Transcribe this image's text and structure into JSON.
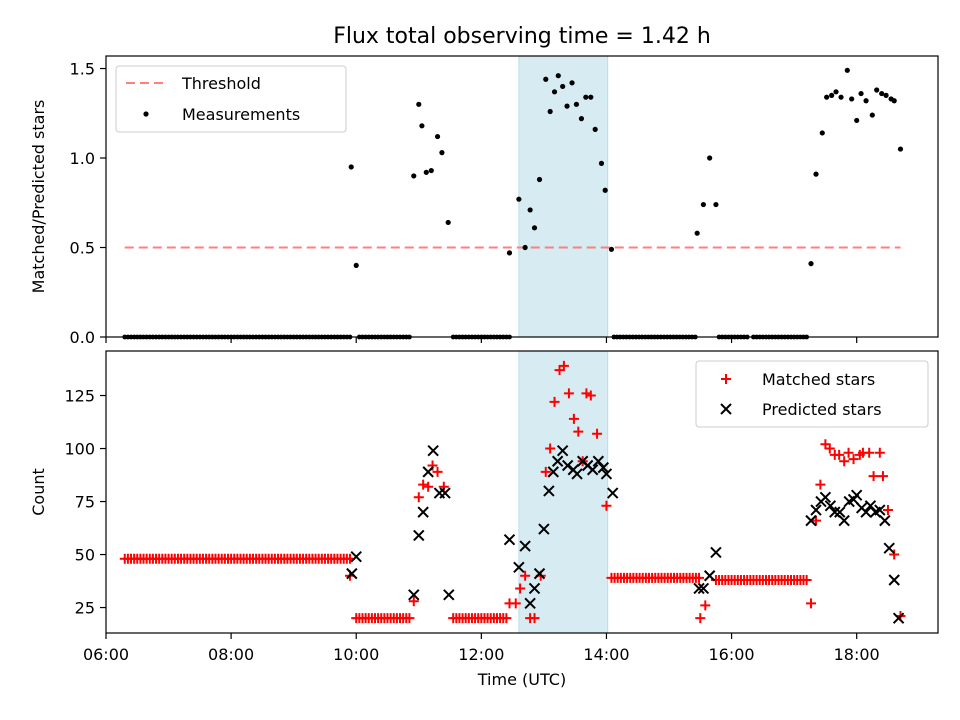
{
  "title": "Flux total observing time = 1.42 h",
  "chart_data": [
    {
      "type": "scatter",
      "panel": "top",
      "title": "Flux total observing time = 1.42 h",
      "ylabel": "Matched/Predicted stars",
      "xlabel": "",
      "xlim": [
        6.0,
        19.3
      ],
      "ylim": [
        0,
        1.57
      ],
      "yticks": [
        0.0,
        0.5,
        1.0,
        1.5
      ],
      "ytick_labels": [
        "0.0",
        "0.5",
        "1.0",
        "1.5"
      ],
      "xticks": [
        6,
        8,
        10,
        12,
        14,
        16,
        18
      ],
      "highlight_span": [
        12.6,
        14.02
      ],
      "highlight_color": "#add8e6",
      "legend_position": "upper left",
      "threshold": {
        "name": "Threshold",
        "y": 0.5,
        "x_range": [
          6.3,
          18.7
        ],
        "color": "#ff7f7f",
        "style": "dashed"
      },
      "measurements": {
        "name": "Measurements",
        "color": "#000000",
        "zero_runs": [
          [
            6.3,
            9.9
          ],
          [
            10.05,
            10.85
          ],
          [
            11.55,
            12.45
          ],
          [
            14.12,
            15.45
          ],
          [
            15.8,
            16.25
          ],
          [
            16.35,
            17.22
          ]
        ],
        "points": [
          [
            9.92,
            0.95
          ],
          [
            10.0,
            0.4
          ],
          [
            10.92,
            0.9
          ],
          [
            11.0,
            1.3
          ],
          [
            11.05,
            1.18
          ],
          [
            11.12,
            0.92
          ],
          [
            11.2,
            0.93
          ],
          [
            11.3,
            1.12
          ],
          [
            11.37,
            1.03
          ],
          [
            11.47,
            0.64
          ],
          [
            12.45,
            0.47
          ],
          [
            12.6,
            0.77
          ],
          [
            12.7,
            0.5
          ],
          [
            12.78,
            0.71
          ],
          [
            12.85,
            0.61
          ],
          [
            12.93,
            0.88
          ],
          [
            13.03,
            1.44
          ],
          [
            13.1,
            1.26
          ],
          [
            13.17,
            1.37
          ],
          [
            13.23,
            1.46
          ],
          [
            13.3,
            1.4
          ],
          [
            13.37,
            1.29
          ],
          [
            13.45,
            1.42
          ],
          [
            13.52,
            1.3
          ],
          [
            13.6,
            1.22
          ],
          [
            13.67,
            1.34
          ],
          [
            13.75,
            1.34
          ],
          [
            13.82,
            1.16
          ],
          [
            13.92,
            0.97
          ],
          [
            13.98,
            0.82
          ],
          [
            14.08,
            0.49
          ],
          [
            15.45,
            0.58
          ],
          [
            15.55,
            0.74
          ],
          [
            15.65,
            1.0
          ],
          [
            15.75,
            0.74
          ],
          [
            17.27,
            0.41
          ],
          [
            17.35,
            0.91
          ],
          [
            17.45,
            1.14
          ],
          [
            17.52,
            1.34
          ],
          [
            17.6,
            1.35
          ],
          [
            17.67,
            1.37
          ],
          [
            17.75,
            1.34
          ],
          [
            17.85,
            1.49
          ],
          [
            17.92,
            1.33
          ],
          [
            18.0,
            1.21
          ],
          [
            18.07,
            1.36
          ],
          [
            18.15,
            1.32
          ],
          [
            18.25,
            1.24
          ],
          [
            18.32,
            1.38
          ],
          [
            18.4,
            1.36
          ],
          [
            18.47,
            1.35
          ],
          [
            18.55,
            1.33
          ],
          [
            18.6,
            1.32
          ],
          [
            18.7,
            1.05
          ]
        ]
      }
    },
    {
      "type": "scatter",
      "panel": "bottom",
      "title": "",
      "ylabel": "Count",
      "xlabel": "Time (UTC)",
      "xlim": [
        6.0,
        19.3
      ],
      "ylim": [
        13,
        146
      ],
      "yticks": [
        25,
        50,
        75,
        100,
        125
      ],
      "ytick_labels": [
        "25",
        "50",
        "75",
        "100",
        "125"
      ],
      "xticks": [
        6,
        8,
        10,
        12,
        14,
        16,
        18
      ],
      "xtick_labels": [
        "06:00",
        "08:00",
        "10:00",
        "12:00",
        "14:00",
        "16:00",
        "18:00"
      ],
      "highlight_span": [
        12.6,
        14.02
      ],
      "highlight_color": "#add8e6",
      "legend_position": "upper right",
      "series": [
        {
          "name": "Matched stars",
          "marker": "plus",
          "color": "#ff0000",
          "runs": [
            [
              6.3,
              9.9,
              48
            ],
            [
              10.0,
              10.85,
              20
            ],
            [
              11.55,
              12.4,
              20
            ],
            [
              14.08,
              15.5,
              39
            ],
            [
              15.75,
              17.22,
              38
            ]
          ],
          "points": [
            [
              9.9,
              40
            ],
            [
              10.92,
              28
            ],
            [
              11.0,
              77
            ],
            [
              11.07,
              83
            ],
            [
              11.15,
              82
            ],
            [
              11.22,
              92
            ],
            [
              11.3,
              89
            ],
            [
              11.4,
              82
            ],
            [
              12.45,
              27
            ],
            [
              12.55,
              27
            ],
            [
              12.62,
              34
            ],
            [
              12.7,
              40
            ],
            [
              12.78,
              20
            ],
            [
              12.85,
              20
            ],
            [
              12.95,
              40
            ],
            [
              13.03,
              89
            ],
            [
              13.1,
              100
            ],
            [
              13.17,
              122
            ],
            [
              13.25,
              137
            ],
            [
              13.32,
              139
            ],
            [
              13.4,
              126
            ],
            [
              13.48,
              114
            ],
            [
              13.55,
              108
            ],
            [
              13.62,
              94
            ],
            [
              13.68,
              126
            ],
            [
              13.75,
              125
            ],
            [
              13.85,
              107
            ],
            [
              14.0,
              73
            ],
            [
              15.5,
              20
            ],
            [
              15.58,
              26
            ],
            [
              17.27,
              27
            ],
            [
              17.35,
              66
            ],
            [
              17.42,
              83
            ],
            [
              17.5,
              102
            ],
            [
              17.57,
              100
            ],
            [
              17.65,
              97
            ],
            [
              17.72,
              97
            ],
            [
              17.8,
              94
            ],
            [
              17.87,
              98
            ],
            [
              17.95,
              95
            ],
            [
              18.05,
              97
            ],
            [
              18.1,
              98
            ],
            [
              18.2,
              98
            ],
            [
              18.27,
              87
            ],
            [
              18.37,
              98
            ],
            [
              18.42,
              87
            ],
            [
              18.5,
              71
            ],
            [
              18.6,
              50
            ],
            [
              18.7,
              21
            ]
          ]
        },
        {
          "name": "Predicted stars",
          "marker": "x",
          "color": "#000000",
          "points": [
            [
              9.93,
              41
            ],
            [
              10.0,
              49
            ],
            [
              10.92,
              31
            ],
            [
              11.0,
              59
            ],
            [
              11.07,
              70
            ],
            [
              11.15,
              89
            ],
            [
              11.23,
              99
            ],
            [
              11.33,
              79
            ],
            [
              11.42,
              79
            ],
            [
              11.48,
              31
            ],
            [
              12.45,
              57
            ],
            [
              12.6,
              44
            ],
            [
              12.7,
              54
            ],
            [
              12.78,
              27
            ],
            [
              12.85,
              34
            ],
            [
              12.93,
              41
            ],
            [
              13.0,
              62
            ],
            [
              13.08,
              80
            ],
            [
              13.15,
              89
            ],
            [
              13.22,
              94
            ],
            [
              13.3,
              99
            ],
            [
              13.38,
              92
            ],
            [
              13.47,
              90
            ],
            [
              13.53,
              88
            ],
            [
              13.62,
              94
            ],
            [
              13.7,
              92
            ],
            [
              13.78,
              90
            ],
            [
              13.87,
              94
            ],
            [
              13.95,
              91
            ],
            [
              14.0,
              88
            ],
            [
              14.1,
              79
            ],
            [
              15.48,
              34
            ],
            [
              15.55,
              34
            ],
            [
              15.65,
              40
            ],
            [
              15.75,
              51
            ],
            [
              17.27,
              66
            ],
            [
              17.35,
              71
            ],
            [
              17.43,
              75
            ],
            [
              17.5,
              77
            ],
            [
              17.58,
              73
            ],
            [
              17.65,
              70
            ],
            [
              17.73,
              70
            ],
            [
              17.8,
              66
            ],
            [
              17.88,
              75
            ],
            [
              17.95,
              76
            ],
            [
              18.0,
              78
            ],
            [
              18.08,
              72
            ],
            [
              18.15,
              70
            ],
            [
              18.22,
              73
            ],
            [
              18.3,
              70
            ],
            [
              18.37,
              71
            ],
            [
              18.45,
              66
            ],
            [
              18.52,
              53
            ],
            [
              18.6,
              38
            ],
            [
              18.67,
              20
            ]
          ]
        }
      ]
    }
  ]
}
